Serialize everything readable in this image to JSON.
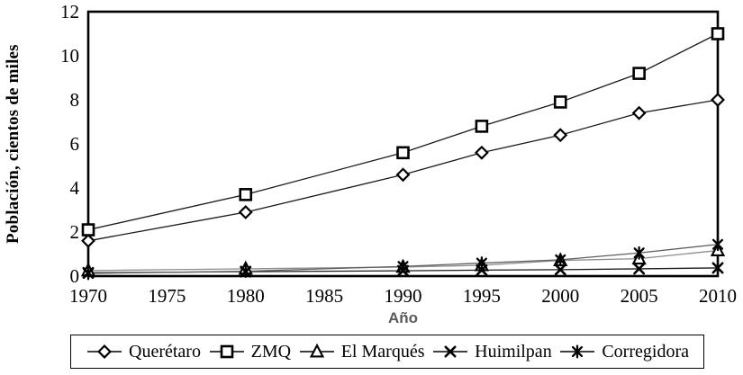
{
  "figure": {
    "background": "#ffffff",
    "axis_color": "#000000",
    "marker_fill": "#ffffff",
    "x_title_color": "#595959"
  },
  "chart_data": {
    "type": "line",
    "title": "",
    "xlabel": "Año",
    "ylabel": "Población, cientos de miles",
    "x": [
      1970,
      1980,
      1990,
      1995,
      2000,
      2005,
      2010
    ],
    "xlim": [
      1970,
      2010
    ],
    "ylim": [
      0,
      12
    ],
    "x_tick_labels": [
      "1970",
      "1975",
      "1980",
      "1985",
      "1990",
      "1995",
      "2000",
      "2005",
      "2010"
    ],
    "y_tick_labels": [
      "0",
      "2",
      "4",
      "6",
      "8",
      "10",
      "12"
    ],
    "grid": false,
    "legend_position": "bottom",
    "series": [
      {
        "name": "Querétaro",
        "marker": "diamond",
        "line_color": "#1a1a1a",
        "values": [
          1.6,
          2.9,
          4.6,
          5.6,
          6.4,
          7.4,
          8.0
        ]
      },
      {
        "name": "ZMQ",
        "marker": "square",
        "line_color": "#1a1a1a",
        "values": [
          2.1,
          3.7,
          5.6,
          6.8,
          7.9,
          9.2,
          11.0
        ]
      },
      {
        "name": "El Marqués",
        "marker": "triangle",
        "line_color": "#8c8c8c",
        "values": [
          0.25,
          0.33,
          0.41,
          0.49,
          0.71,
          0.79,
          1.16
        ]
      },
      {
        "name": "Huimilpan",
        "marker": "x",
        "line_color": "#1a1a1a",
        "values": [
          0.15,
          0.2,
          0.24,
          0.27,
          0.29,
          0.33,
          0.37
        ]
      },
      {
        "name": "Corregidora",
        "marker": "star",
        "line_color": "#5f5f5f",
        "values": [
          0.12,
          0.22,
          0.44,
          0.59,
          0.74,
          1.05,
          1.44
        ]
      }
    ]
  }
}
